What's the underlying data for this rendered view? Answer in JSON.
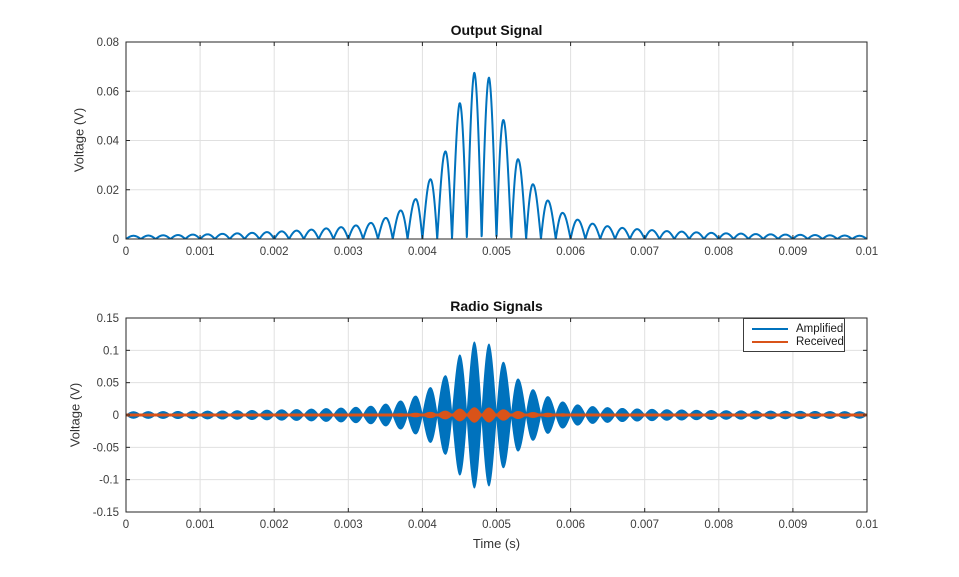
{
  "figure": {
    "background": "#ffffff",
    "axis_color": "#262626",
    "grid_color": "#e0e0e0",
    "tick_label_color": "#3c3c3c",
    "blue": "#0072bd",
    "orange": "#d95319"
  },
  "chart_data": [
    {
      "type": "line",
      "title": "Output Signal",
      "xlabel": "",
      "ylabel": "Voltage (V)",
      "xlim": [
        0,
        0.01
      ],
      "ylim": [
        0,
        0.08
      ],
      "grid": true,
      "xticks": [
        0,
        0.001,
        0.002,
        0.003,
        0.004,
        0.005,
        0.006,
        0.007,
        0.008,
        0.009,
        0.01
      ],
      "xtick_labels": [
        "0",
        "0.001",
        "0.002",
        "0.003",
        "0.004",
        "0.005",
        "0.006",
        "0.007",
        "0.008",
        "0.009",
        "0.01"
      ],
      "yticks": [
        0,
        0.02,
        0.04,
        0.06,
        0.08
      ],
      "ytick_labels": [
        "0",
        "0.02",
        "0.04",
        "0.06",
        "0.08"
      ],
      "series": [
        {
          "name": "Output",
          "color": "#0072bd",
          "style": "stroke",
          "waveform": "envelope * |sin(2*pi*2500*t)|",
          "modulation_hz": 2500,
          "envelope_t": [
            0.0001,
            0.0003,
            0.0005,
            0.0007,
            0.0009,
            0.0011,
            0.0013,
            0.0015,
            0.0017,
            0.0019,
            0.0021,
            0.0023,
            0.0025,
            0.0027,
            0.0029,
            0.0031,
            0.0033,
            0.0035,
            0.0037,
            0.0039,
            0.0041,
            0.0043,
            0.0045,
            0.0047,
            0.0049,
            0.0051,
            0.0053,
            0.0055,
            0.0057,
            0.0059,
            0.0061,
            0.0063,
            0.0065,
            0.0067,
            0.0069,
            0.0071,
            0.0073,
            0.0075,
            0.0077,
            0.0079,
            0.0081,
            0.0083,
            0.0085,
            0.0087,
            0.0089,
            0.0091,
            0.0093,
            0.0095,
            0.0097,
            0.0099
          ],
          "envelope_v": [
            0.0013,
            0.0014,
            0.0015,
            0.0016,
            0.0018,
            0.0019,
            0.0021,
            0.0023,
            0.0025,
            0.0028,
            0.0031,
            0.0034,
            0.0038,
            0.0043,
            0.0048,
            0.0055,
            0.0065,
            0.0085,
            0.0115,
            0.016,
            0.024,
            0.035,
            0.055,
            0.0675,
            0.0655,
            0.048,
            0.032,
            0.022,
            0.0155,
            0.0105,
            0.0078,
            0.0062,
            0.0052,
            0.0045,
            0.004,
            0.0036,
            0.0032,
            0.003,
            0.0027,
            0.0025,
            0.0023,
            0.0022,
            0.002,
            0.0019,
            0.0018,
            0.0017,
            0.0016,
            0.0015,
            0.0014,
            0.0013
          ]
        }
      ]
    },
    {
      "type": "line",
      "title": "Radio Signals",
      "xlabel": "Time (s)",
      "ylabel": "Voltage (V)",
      "xlim": [
        0,
        0.01
      ],
      "ylim": [
        -0.15,
        0.15
      ],
      "grid": true,
      "xticks": [
        0,
        0.001,
        0.002,
        0.003,
        0.004,
        0.005,
        0.006,
        0.007,
        0.008,
        0.009,
        0.01
      ],
      "xtick_labels": [
        "0",
        "0.001",
        "0.002",
        "0.003",
        "0.004",
        "0.005",
        "0.006",
        "0.007",
        "0.008",
        "0.009",
        "0.01"
      ],
      "yticks": [
        -0.15,
        -0.1,
        -0.05,
        0,
        0.05,
        0.1,
        0.15
      ],
      "ytick_labels": [
        "-0.15",
        "-0.1",
        "-0.05",
        "0",
        "0.05",
        "0.1",
        "0.15"
      ],
      "legend": {
        "position": "northeast",
        "entries": [
          "Amplified",
          "Received"
        ]
      },
      "series": [
        {
          "name": "Amplified",
          "color": "#0072bd",
          "style": "fill-symmetric",
          "waveform": "+/- envelope * |sin(2*pi*2500*t)| filled by dense carrier",
          "modulation_hz": 2500,
          "envelope_t": [
            0.0001,
            0.0003,
            0.0005,
            0.0007,
            0.0009,
            0.0011,
            0.0013,
            0.0015,
            0.0017,
            0.0019,
            0.0021,
            0.0023,
            0.0025,
            0.0027,
            0.0029,
            0.0031,
            0.0033,
            0.0035,
            0.0037,
            0.0039,
            0.0041,
            0.0043,
            0.0045,
            0.0047,
            0.0049,
            0.0051,
            0.0053,
            0.0055,
            0.0057,
            0.0059,
            0.0061,
            0.0063,
            0.0065,
            0.0067,
            0.0069,
            0.0071,
            0.0073,
            0.0075,
            0.0077,
            0.0079,
            0.0081,
            0.0083,
            0.0085,
            0.0087,
            0.0089,
            0.0091,
            0.0093,
            0.0095,
            0.0097,
            0.0099
          ],
          "envelope_v": [
            0.0051,
            0.0053,
            0.0054,
            0.0056,
            0.0059,
            0.0061,
            0.0064,
            0.0067,
            0.0071,
            0.0076,
            0.0081,
            0.0085,
            0.0092,
            0.01,
            0.0108,
            0.012,
            0.0136,
            0.0169,
            0.0217,
            0.0291,
            0.0421,
            0.06,
            0.0927,
            0.113,
            0.1098,
            0.0812,
            0.0552,
            0.0389,
            0.0283,
            0.0201,
            0.0157,
            0.0131,
            0.0115,
            0.0103,
            0.0095,
            0.0089,
            0.0082,
            0.0079,
            0.0074,
            0.0071,
            0.0067,
            0.0066,
            0.0063,
            0.0061,
            0.0059,
            0.0058,
            0.0056,
            0.0054,
            0.0053,
            0.0051
          ]
        },
        {
          "name": "Received",
          "color": "#d95319",
          "style": "fill-symmetric",
          "waveform": "+/- envelope * |sin(2*pi*2500*t)| filled by dense carrier",
          "modulation_hz": 2500,
          "envelope_t": [
            0.0001,
            0.0003,
            0.0005,
            0.0007,
            0.0009,
            0.0011,
            0.0013,
            0.0015,
            0.0017,
            0.0019,
            0.0021,
            0.0023,
            0.0025,
            0.0027,
            0.0029,
            0.0031,
            0.0033,
            0.0035,
            0.0037,
            0.0039,
            0.0041,
            0.0043,
            0.0045,
            0.0047,
            0.0049,
            0.0051,
            0.0053,
            0.0055,
            0.0057,
            0.0059,
            0.0061,
            0.0063,
            0.0065,
            0.0067,
            0.0069,
            0.0071,
            0.0073,
            0.0075,
            0.0077,
            0.0079,
            0.0081,
            0.0083,
            0.0085,
            0.0087,
            0.0089,
            0.0091,
            0.0093,
            0.0095,
            0.0097,
            0.0099
          ],
          "envelope_v": [
            0.00051,
            0.00053,
            0.00054,
            0.00056,
            0.00059,
            0.00061,
            0.00064,
            0.00067,
            0.00071,
            0.00076,
            0.00081,
            0.00085,
            0.00092,
            0.001,
            0.00108,
            0.0012,
            0.00136,
            0.00169,
            0.00217,
            0.00291,
            0.00421,
            0.006,
            0.00927,
            0.0113,
            0.01098,
            0.00812,
            0.00552,
            0.00389,
            0.00283,
            0.00201,
            0.00157,
            0.00131,
            0.00115,
            0.00103,
            0.00095,
            0.00089,
            0.00082,
            0.00079,
            0.00074,
            0.00071,
            0.00067,
            0.00066,
            0.00063,
            0.00061,
            0.00059,
            0.00058,
            0.00056,
            0.00054,
            0.00053,
            0.00051
          ]
        }
      ]
    }
  ]
}
